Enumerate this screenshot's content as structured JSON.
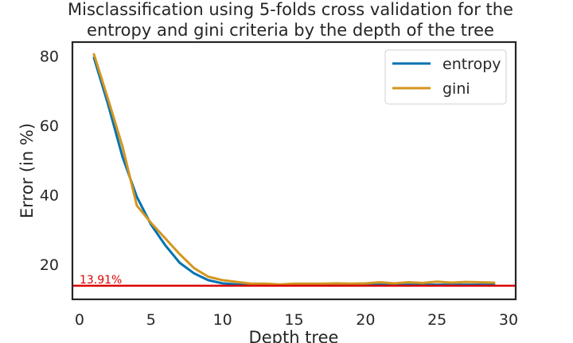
{
  "chart_data": {
    "type": "line",
    "title_line1": "Misclassification using 5-folds cross validation for the",
    "title_line2": "entropy and gini criteria by the depth of the tree",
    "xlabel": "Depth tree",
    "ylabel": "Error (in %)",
    "xlim": [
      -0.5,
      30.5
    ],
    "ylim": [
      10,
      84
    ],
    "xticks": [
      0,
      5,
      10,
      15,
      20,
      25,
      30
    ],
    "yticks": [
      20,
      40,
      60,
      80
    ],
    "legend_position": "upper right",
    "grid": false,
    "x": [
      1,
      2,
      3,
      4,
      5,
      6,
      7,
      8,
      9,
      10,
      11,
      12,
      13,
      14,
      15,
      16,
      17,
      18,
      19,
      20,
      21,
      22,
      23,
      24,
      25,
      26,
      27,
      28,
      29
    ],
    "series": [
      {
        "name": "entropy",
        "color": "#0072b2",
        "values": [
          79.5,
          66.0,
          51.0,
          39.5,
          31.5,
          25.5,
          20.5,
          17.5,
          15.5,
          14.6,
          14.3,
          14.2,
          14.2,
          14.2,
          14.2,
          14.2,
          14.2,
          14.2,
          14.2,
          14.2,
          14.2,
          14.2,
          14.2,
          14.2,
          14.2,
          14.2,
          14.2,
          14.2,
          14.2
        ]
      },
      {
        "name": "gini",
        "color": "#d4951e",
        "values": [
          80.5,
          67.5,
          54.0,
          37.0,
          32.0,
          27.5,
          23.0,
          19.0,
          16.5,
          15.5,
          15.0,
          14.5,
          14.5,
          14.3,
          14.5,
          14.5,
          14.5,
          14.6,
          14.5,
          14.6,
          14.9,
          14.6,
          14.9,
          14.7,
          15.1,
          14.8,
          15.0,
          14.9,
          14.8
        ]
      }
    ],
    "reference_line": {
      "y": 13.91,
      "label": "13.91%",
      "color": "#dd0000"
    }
  }
}
